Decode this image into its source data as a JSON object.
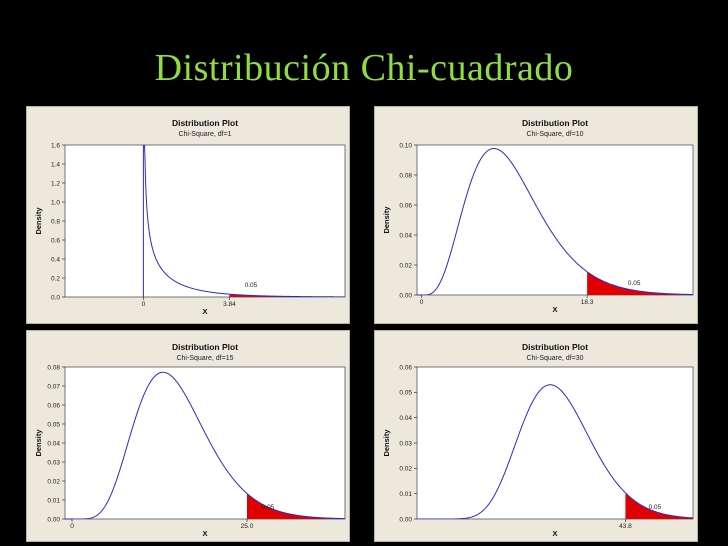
{
  "slide": {
    "title": "Distribución Chi-cuadrado"
  },
  "colors": {
    "background": "#000000",
    "title": "#8fdc44",
    "panel": "#ece8dc",
    "curve": "#2a2ad0",
    "tail": "#e00000"
  },
  "chart_data": [
    {
      "type": "area",
      "title": "Distribution Plot",
      "subtitle": "Chi-Square, df=1",
      "xlabel": "X",
      "ylabel": "Density",
      "df": 1,
      "xlim": [
        -3.5,
        9
      ],
      "ylim": [
        0,
        1.6
      ],
      "yticks": [
        "0.0",
        "0.2",
        "0.4",
        "0.6",
        "0.8",
        "1.0",
        "1.2",
        "1.4",
        "1.6"
      ],
      "yvalues": [
        0,
        0.2,
        0.4,
        0.6,
        0.8,
        1.0,
        1.2,
        1.4,
        1.6
      ],
      "xticks": [
        {
          "value": 0,
          "label": "0"
        },
        {
          "value": 3.84,
          "label": "3.84"
        }
      ],
      "critical": 3.84,
      "tail_area": "0.05",
      "tail_label_x": 4.8
    },
    {
      "type": "area",
      "title": "Distribution Plot",
      "subtitle": "Chi-Square, df=10",
      "xlabel": "X",
      "ylabel": "Density",
      "df": 10,
      "xlim": [
        -0.5,
        30
      ],
      "ylim": [
        0,
        0.1
      ],
      "yticks": [
        "0.00",
        "0.02",
        "0.04",
        "0.06",
        "0.08",
        "0.10"
      ],
      "yvalues": [
        0,
        0.02,
        0.04,
        0.06,
        0.08,
        0.1
      ],
      "xticks": [
        {
          "value": 0,
          "label": "0"
        },
        {
          "value": 18.3,
          "label": "18.3"
        }
      ],
      "critical": 18.3,
      "tail_area": "0.05",
      "tail_label_x": 23.5
    },
    {
      "type": "area",
      "title": "Distribution Plot",
      "subtitle": "Chi-Square, df=15",
      "xlabel": "X",
      "ylabel": "Density",
      "df": 15,
      "xlim": [
        -1,
        39
      ],
      "ylim": [
        0,
        0.08
      ],
      "yticks": [
        "0.00",
        "0.01",
        "0.02",
        "0.03",
        "0.04",
        "0.05",
        "0.06",
        "0.07",
        "0.08"
      ],
      "yvalues": [
        0,
        0.01,
        0.02,
        0.03,
        0.04,
        0.05,
        0.06,
        0.07,
        0.08
      ],
      "xticks": [
        {
          "value": 0,
          "label": "0"
        },
        {
          "value": 25.0,
          "label": "25.0"
        }
      ],
      "critical": 25.0,
      "tail_area": "0.05",
      "tail_label_x": 28
    },
    {
      "type": "area",
      "title": "Distribution Plot",
      "subtitle": "Chi-Square, df=30",
      "xlabel": "X",
      "ylabel": "Density",
      "df": 30,
      "xlim": [
        0,
        58
      ],
      "ylim": [
        0,
        0.06
      ],
      "yticks": [
        "0.00",
        "0.01",
        "0.02",
        "0.03",
        "0.04",
        "0.05",
        "0.06"
      ],
      "yvalues": [
        0,
        0.01,
        0.02,
        0.03,
        0.04,
        0.05,
        0.06
      ],
      "xticks": [
        {
          "value": 43.8,
          "label": "43.8"
        }
      ],
      "critical": 43.8,
      "tail_area": "0.05",
      "tail_label_x": 50
    }
  ]
}
